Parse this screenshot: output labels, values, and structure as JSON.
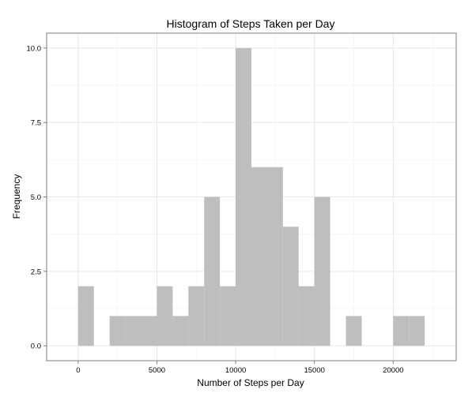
{
  "chart_data": {
    "type": "bar",
    "title": "Histogram of Steps Taken per Day",
    "xlabel": "Number of Steps per Day",
    "ylabel": "Frequency",
    "bin_width": 1000,
    "bins": [
      {
        "start": 0,
        "end": 1000,
        "count": 2
      },
      {
        "start": 1000,
        "end": 2000,
        "count": 0
      },
      {
        "start": 2000,
        "end": 3000,
        "count": 1
      },
      {
        "start": 3000,
        "end": 4000,
        "count": 1
      },
      {
        "start": 4000,
        "end": 5000,
        "count": 1
      },
      {
        "start": 5000,
        "end": 6000,
        "count": 2
      },
      {
        "start": 6000,
        "end": 7000,
        "count": 1
      },
      {
        "start": 7000,
        "end": 8000,
        "count": 2
      },
      {
        "start": 8000,
        "end": 9000,
        "count": 5
      },
      {
        "start": 9000,
        "end": 10000,
        "count": 2
      },
      {
        "start": 10000,
        "end": 11000,
        "count": 10
      },
      {
        "start": 11000,
        "end": 12000,
        "count": 6
      },
      {
        "start": 12000,
        "end": 13000,
        "count": 6
      },
      {
        "start": 13000,
        "end": 14000,
        "count": 4
      },
      {
        "start": 14000,
        "end": 15000,
        "count": 2
      },
      {
        "start": 15000,
        "end": 16000,
        "count": 5
      },
      {
        "start": 16000,
        "end": 17000,
        "count": 0
      },
      {
        "start": 17000,
        "end": 18000,
        "count": 1
      },
      {
        "start": 18000,
        "end": 19000,
        "count": 0
      },
      {
        "start": 19000,
        "end": 20000,
        "count": 0
      },
      {
        "start": 20000,
        "end": 21000,
        "count": 1
      },
      {
        "start": 21000,
        "end": 22000,
        "count": 1
      }
    ],
    "xlim": [
      -2000,
      24000
    ],
    "ylim": [
      -0.5,
      10.5
    ],
    "x_ticks": [
      0,
      5000,
      10000,
      15000,
      20000
    ],
    "x_tick_labels": [
      "0",
      "5000",
      "10000",
      "15000",
      "20000"
    ],
    "y_ticks": [
      0,
      2.5,
      5,
      7.5,
      10
    ],
    "y_tick_labels": [
      "0.0",
      "2.5",
      "5.0",
      "7.5",
      "10.0"
    ],
    "grid": true,
    "legend": "none",
    "colors": {
      "bar": "#bebebe",
      "grid_major": "#e6e6e6",
      "grid_minor": "#f2f2f2",
      "panel_border": "#7f7f7f"
    }
  }
}
